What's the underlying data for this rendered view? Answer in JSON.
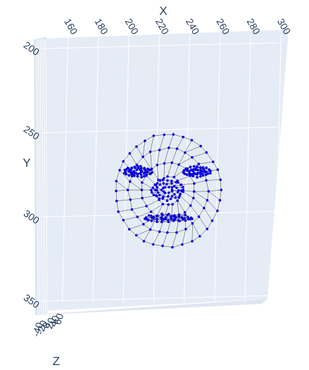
{
  "chart_data": {
    "type": "scatter3d",
    "title": "",
    "mode": "markers+mesh-wireframe",
    "marker_color": "#0a00e6",
    "line_color": "#3a3a3a",
    "background_color": "#e5ecf6",
    "grid_color": "#ffffff",
    "axes": {
      "x": {
        "title": "X",
        "ticks": [
          "160",
          "180",
          "200",
          "220",
          "240",
          "260",
          "280",
          "300"
        ],
        "range": [
          150,
          305
        ]
      },
      "y": {
        "title": "Y",
        "ticks": [
          "200",
          "250",
          "300",
          "350"
        ],
        "range": [
          190,
          355
        ]
      },
      "z": {
        "title": "Z",
        "ticks": [
          "-40",
          "-20",
          "0",
          "20",
          "40",
          "60"
        ],
        "range": [
          -40,
          60
        ]
      }
    },
    "regions": [
      {
        "name": "face-outline",
        "cx": 239,
        "cy": 271,
        "rx": 75,
        "ry": 80,
        "rings": 4
      },
      {
        "name": "left-eye",
        "cx": 196,
        "cy": 244,
        "rx": 19,
        "ry": 7,
        "rings": 3
      },
      {
        "name": "right-eye",
        "cx": 280,
        "cy": 244,
        "rx": 19,
        "ry": 7,
        "rings": 3
      },
      {
        "name": "nose",
        "cx": 238,
        "cy": 270,
        "rx": 22,
        "ry": 14,
        "rings": 3
      },
      {
        "name": "mouth",
        "cx": 239,
        "cy": 310,
        "rx": 33,
        "ry": 5,
        "rings": 3
      }
    ]
  }
}
